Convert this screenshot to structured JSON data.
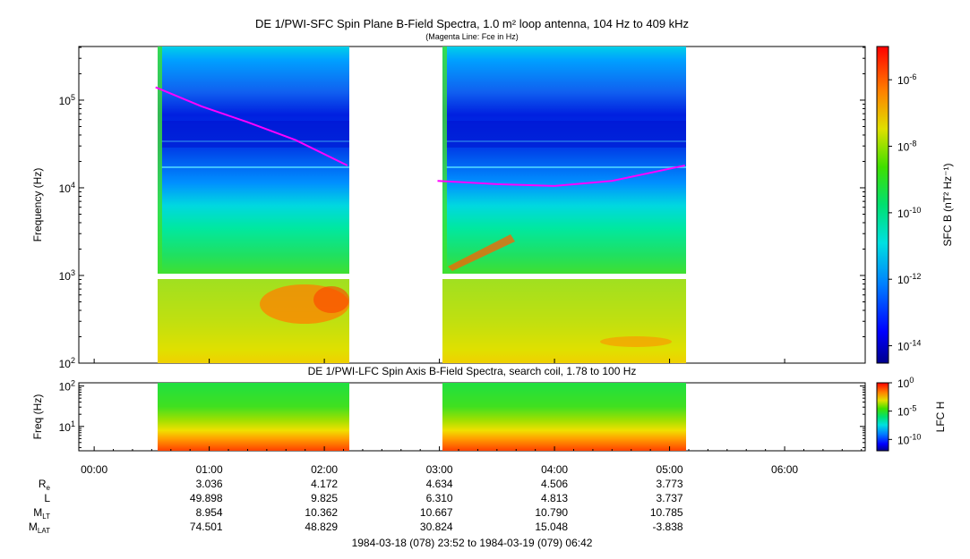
{
  "top_panel": {
    "title": "DE 1/PWI-SFC  Spin Plane B-Field Spectra, 1.0 m² loop antenna, 104 Hz to 409 kHz",
    "subtitle": "(Magenta Line: Fce in Hz)",
    "ylabel": "Frequency (Hz)",
    "colorbar_label": "SFC B (nT² Hz⁻¹)"
  },
  "bottom_panel": {
    "title": "DE 1/PWI-LFC  Spin Axis B-Field Spectra, search coil, 1.78 to 100 Hz",
    "ylabel": "Freq (Hz)",
    "colorbar_label": "LFC H"
  },
  "footer": {
    "date_range": "1984-03-18 (078) 23:52 to 1984-03-19 (079) 06:42"
  },
  "ephemeris": {
    "rows": [
      {
        "label": "R",
        "sub": "e",
        "values": [
          "3.036",
          "4.172",
          "4.634",
          "4.506",
          "3.773"
        ]
      },
      {
        "label": "L",
        "sub": "",
        "values": [
          "49.898",
          "9.825",
          "6.310",
          "4.813",
          "3.737"
        ]
      },
      {
        "label": "M",
        "sub": "LT",
        "values": [
          "8.954",
          "10.362",
          "10.667",
          "10.790",
          "10.785"
        ]
      },
      {
        "label": "M",
        "sub": "LAT",
        "values": [
          "74.501",
          "48.829",
          "30.824",
          "15.048",
          "-3.838"
        ]
      }
    ],
    "times": [
      "01:00",
      "02:00",
      "03:00",
      "04:00",
      "05:00"
    ]
  },
  "chart_data": [
    {
      "type": "heatmap",
      "title": "DE 1/PWI-SFC  Spin Plane B-Field Spectra, 1.0 m² loop antenna, 104 Hz to 409 kHz",
      "ylabel": "Frequency (Hz)",
      "y_scale": "log",
      "ylim": [
        100,
        409000
      ],
      "y_ticks": [
        {
          "value": 100,
          "base": "10",
          "exp": "2"
        },
        {
          "value": 1000,
          "base": "10",
          "exp": "3"
        },
        {
          "value": 10000,
          "base": "10",
          "exp": "4"
        },
        {
          "value": 100000,
          "base": "10",
          "exp": "5"
        }
      ],
      "x_range": [
        "23:52",
        "06:42"
      ],
      "x_ticks": [
        "00:00",
        "01:00",
        "02:00",
        "03:00",
        "04:00",
        "05:00",
        "06:00"
      ],
      "data_intervals": [
        [
          "00:32",
          "02:12"
        ],
        [
          "02:59",
          "05:08"
        ]
      ],
      "colorbar": {
        "label": "SFC B (nT² Hz⁻¹)",
        "scale": "log",
        "range": [
          3e-15,
          1e-05
        ],
        "ticks": [
          {
            "value": 1e-06,
            "base": "10",
            "exp": "-6"
          },
          {
            "value": 1e-08,
            "base": "10",
            "exp": "-8"
          },
          {
            "value": 1e-10,
            "base": "10",
            "exp": "-10"
          },
          {
            "value": 1e-12,
            "base": "10",
            "exp": "-12"
          },
          {
            "value": 1e-14,
            "base": "10",
            "exp": "-14"
          }
        ]
      },
      "fce_line": {
        "color": "#ff00ff",
        "segments": [
          {
            "points": [
              [
                "00:32",
                140000
              ],
              [
                "00:56",
                85000
              ],
              [
                "01:20",
                56000
              ],
              [
                "01:45",
                35000
              ],
              [
                "02:12",
                18000
              ]
            ]
          },
          {
            "points": [
              [
                "02:59",
                12000
              ],
              [
                "03:30",
                11000
              ],
              [
                "04:00",
                10500
              ],
              [
                "04:30",
                12000
              ],
              [
                "05:08",
                18000
              ]
            ]
          }
        ]
      }
    },
    {
      "type": "heatmap",
      "title": "DE 1/PWI-LFC  Spin Axis B-Field Spectra, search coil, 1.78 to 100 Hz",
      "ylabel": "Freq (Hz)",
      "y_scale": "log",
      "ylim": [
        2.5,
        120
      ],
      "y_ticks": [
        {
          "value": 10,
          "base": "10",
          "exp": "1"
        },
        {
          "value": 100,
          "base": "10",
          "exp": "2"
        }
      ],
      "x_range": [
        "23:52",
        "06:42"
      ],
      "x_ticks": [
        "00:00",
        "01:00",
        "02:00",
        "03:00",
        "04:00",
        "05:00",
        "06:00"
      ],
      "data_intervals": [
        [
          "00:32",
          "02:12"
        ],
        [
          "02:59",
          "05:08"
        ]
      ],
      "colorbar": {
        "label": "LFC H",
        "scale": "log",
        "range": [
          1e-12,
          1
        ],
        "ticks": [
          {
            "value": 1,
            "base": "10",
            "exp": "0"
          },
          {
            "value": 1e-05,
            "base": "10",
            "exp": "-5"
          },
          {
            "value": 1e-10,
            "base": "10",
            "exp": "-10"
          }
        ]
      }
    }
  ]
}
